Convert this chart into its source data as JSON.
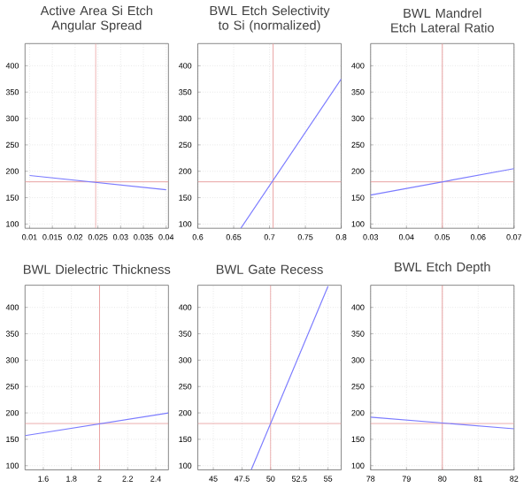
{
  "chart_data": [
    {
      "type": "line",
      "title": "Active Area Si Etch Angular Spread",
      "x": [
        0.01,
        0.04
      ],
      "values": [
        192,
        165
      ],
      "color": "#7b7bff",
      "xlim": [
        0.009,
        0.0405
      ],
      "xticks": [
        0.01,
        0.015,
        0.02,
        0.025,
        0.03,
        0.035,
        0.04
      ],
      "ylim": [
        92,
        442
      ],
      "yticks": [
        100,
        150,
        200,
        250,
        300,
        350,
        400
      ],
      "grid": true,
      "ref_lines": [
        {
          "axis": "x",
          "value": 0.0245,
          "color": "#e8a0a0"
        },
        {
          "axis": "y",
          "value": 180,
          "color": "#e8a0a0"
        }
      ]
    },
    {
      "type": "line",
      "title": "BWL Etch Selectivity to Si (normalized)",
      "x": [
        0.66,
        0.8
      ],
      "values": [
        92,
        375
      ],
      "color": "#7b7bff",
      "xlim": [
        0.6,
        0.8
      ],
      "xticks": [
        0.6,
        0.65,
        0.7,
        0.75,
        0.8
      ],
      "ylim": [
        92,
        442
      ],
      "yticks": [
        100,
        150,
        200,
        250,
        300,
        350,
        400
      ],
      "grid": true,
      "ref_lines": [
        {
          "axis": "x",
          "value": 0.705,
          "color": "#e8a0a0"
        },
        {
          "axis": "y",
          "value": 180,
          "color": "#e8a0a0"
        }
      ]
    },
    {
      "type": "line",
      "title": "BWL Mandrel Etch Lateral Ratio",
      "x": [
        0.03,
        0.07
      ],
      "values": [
        155,
        205
      ],
      "color": "#7b7bff",
      "xlim": [
        0.03,
        0.07
      ],
      "xticks": [
        0.03,
        0.04,
        0.05,
        0.06,
        0.07
      ],
      "ylim": [
        92,
        442
      ],
      "yticks": [
        100,
        150,
        200,
        250,
        300,
        350,
        400
      ],
      "grid": true,
      "ref_lines": [
        {
          "axis": "x",
          "value": 0.05,
          "color": "#e8a0a0"
        },
        {
          "axis": "y",
          "value": 180,
          "color": "#e8a0a0"
        }
      ]
    },
    {
      "type": "line",
      "title": "BWL Dielectric Thickness",
      "x": [
        1.47,
        2.49
      ],
      "values": [
        157,
        200
      ],
      "color": "#7b7bff",
      "xlim": [
        1.47,
        2.49
      ],
      "xticks": [
        1.6,
        1.8,
        2,
        2.2,
        2.4
      ],
      "ylim": [
        92,
        442
      ],
      "yticks": [
        100,
        150,
        200,
        250,
        300,
        350,
        400
      ],
      "grid": true,
      "ref_lines": [
        {
          "axis": "x",
          "value": 2.0,
          "color": "#e8a0a0"
        },
        {
          "axis": "y",
          "value": 180,
          "color": "#e8a0a0"
        }
      ]
    },
    {
      "type": "line",
      "title": "BWL Gate Recess",
      "x": [
        48.3,
        55
      ],
      "values": [
        92,
        440
      ],
      "color": "#7b7bff",
      "xlim": [
        43.65,
        56.15
      ],
      "xticks": [
        45,
        47.5,
        50,
        52.5,
        55
      ],
      "ylim": [
        92,
        442
      ],
      "yticks": [
        100,
        150,
        200,
        250,
        300,
        350,
        400
      ],
      "grid": true,
      "ref_lines": [
        {
          "axis": "x",
          "value": 50,
          "color": "#e8a0a0"
        },
        {
          "axis": "y",
          "value": 180,
          "color": "#e8a0a0"
        }
      ]
    },
    {
      "type": "line",
      "title": "BWL Etch Depth",
      "x": [
        78,
        82
      ],
      "values": [
        192,
        170
      ],
      "color": "#7b7bff",
      "xlim": [
        78,
        82
      ],
      "xticks": [
        78,
        79,
        80,
        81,
        82
      ],
      "ylim": [
        92,
        442
      ],
      "yticks": [
        100,
        150,
        200,
        250,
        300,
        350,
        400
      ],
      "grid": true,
      "ref_lines": [
        {
          "axis": "x",
          "value": 80,
          "color": "#e8a0a0"
        },
        {
          "axis": "y",
          "value": 180,
          "color": "#e8a0a0"
        }
      ]
    }
  ]
}
